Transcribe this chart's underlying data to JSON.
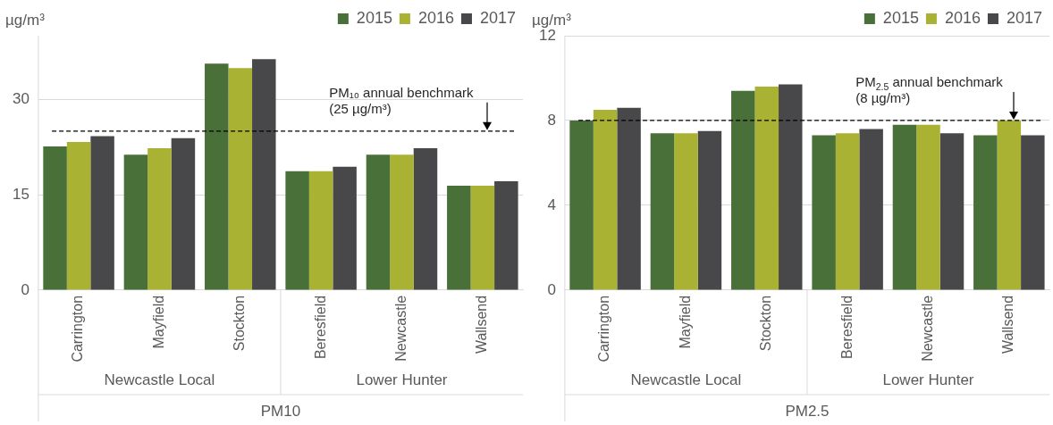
{
  "chart_data": [
    {
      "type": "bar",
      "ylabel": "µg/m³",
      "xlabel": "PM10",
      "categories": [
        "Carrington",
        "Mayfield",
        "Stockton",
        "Beresfield",
        "Newcastle",
        "Wallsend"
      ],
      "annotations": [
        "Newcastle Local",
        "Lower Hunter"
      ],
      "series": [
        {
          "name": "2015",
          "color": "#4a7039",
          "values": [
            22.6,
            21.3,
            35.6,
            18.7,
            21.3,
            16.4
          ]
        },
        {
          "name": "2016",
          "color": "#a9b232",
          "values": [
            23.3,
            22.3,
            34.9,
            18.7,
            21.3,
            16.4
          ]
        },
        {
          "name": "2017",
          "color": "#48484a",
          "values": [
            24.2,
            23.9,
            36.3,
            19.4,
            22.3,
            17.1
          ]
        }
      ],
      "ylim": [
        0,
        40
      ],
      "yticks": [
        0,
        15,
        30
      ],
      "grid": "y",
      "legend": "top right",
      "ref_lines": [
        {
          "axis": "y",
          "value": 25,
          "label": "PM₁₀ annual benchmark (25 µg/m³)",
          "color": "#000000",
          "line_style": "dashed"
        }
      ]
    },
    {
      "type": "bar",
      "ylabel": "µg/m³",
      "xlabel": "PM2.5",
      "categories": [
        "Carrington",
        "Mayfield",
        "Stockton",
        "Beresfield",
        "Newcastle",
        "Wallsend"
      ],
      "annotations": [
        "Newcastle Local",
        "Lower Hunter"
      ],
      "series": [
        {
          "name": "2015",
          "color": "#4a7039",
          "values": [
            8.0,
            7.4,
            9.4,
            7.3,
            7.8,
            7.3
          ]
        },
        {
          "name": "2016",
          "color": "#a9b232",
          "values": [
            8.5,
            7.4,
            9.6,
            7.4,
            7.8,
            8.0
          ]
        },
        {
          "name": "2017",
          "color": "#48484a",
          "values": [
            8.6,
            7.5,
            9.7,
            7.6,
            7.4,
            7.3
          ]
        }
      ],
      "ylim": [
        0,
        12
      ],
      "yticks": [
        0,
        4,
        8,
        12
      ],
      "grid": "y",
      "legend": "top right",
      "ref_lines": [
        {
          "axis": "y",
          "value": 8,
          "label": "PM$_{2.5}$ annual benchmark (8 µg/m³)",
          "color": "#000000",
          "line_style": "dashed"
        }
      ]
    }
  ]
}
